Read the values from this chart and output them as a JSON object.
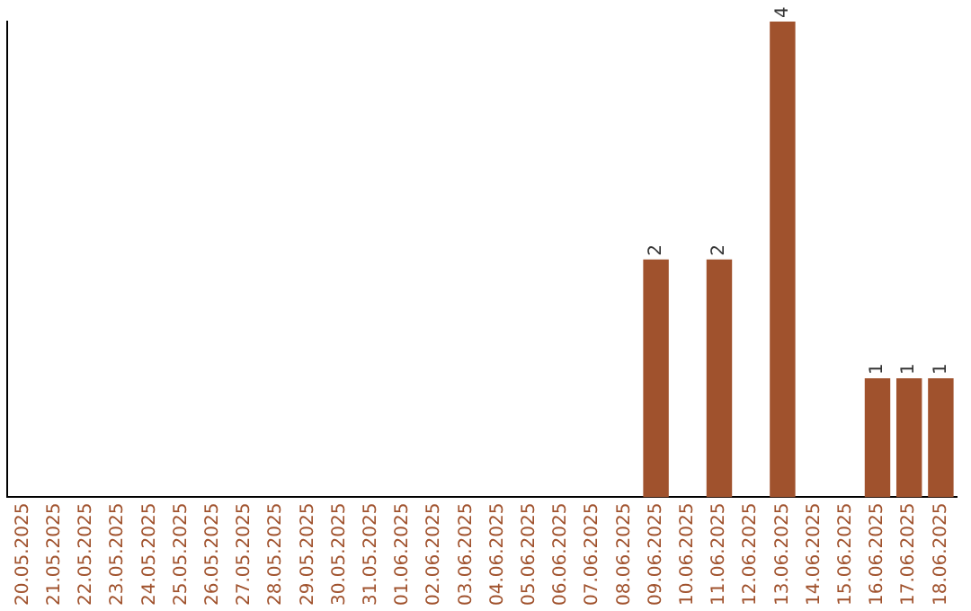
{
  "chart_data": {
    "type": "bar",
    "categories": [
      "20.05.2025",
      "21.05.2025",
      "22.05.2025",
      "23.05.2025",
      "24.05.2025",
      "25.05.2025",
      "26.05.2025",
      "27.05.2025",
      "28.05.2025",
      "29.05.2025",
      "30.05.2025",
      "31.05.2025",
      "01.06.2025",
      "02.06.2025",
      "03.06.2025",
      "04.06.2025",
      "05.06.2025",
      "06.06.2025",
      "07.06.2025",
      "08.06.2025",
      "09.06.2025",
      "10.06.2025",
      "11.06.2025",
      "12.06.2025",
      "13.06.2025",
      "14.06.2025",
      "15.06.2025",
      "16.06.2025",
      "17.06.2025",
      "18.06.2025"
    ],
    "values": [
      null,
      null,
      null,
      null,
      null,
      null,
      null,
      null,
      null,
      null,
      null,
      null,
      null,
      null,
      null,
      null,
      null,
      null,
      null,
      null,
      2,
      null,
      2,
      null,
      4,
      null,
      null,
      1,
      1,
      1
    ],
    "value_labels": [
      null,
      null,
      null,
      null,
      null,
      null,
      null,
      null,
      null,
      null,
      null,
      null,
      null,
      null,
      null,
      null,
      null,
      null,
      null,
      null,
      "2",
      null,
      "2",
      null,
      "4",
      null,
      null,
      "1",
      "1",
      "1"
    ],
    "color": "#a0522d",
    "tick_labels": "x",
    "grid": false,
    "legend": false
  }
}
